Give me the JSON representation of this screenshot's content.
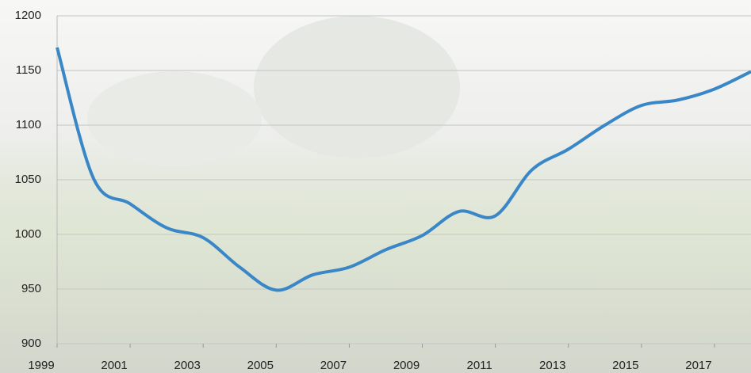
{
  "chart_data": {
    "type": "line",
    "x": [
      1999,
      2000,
      2001,
      2002,
      2003,
      2004,
      2005,
      2006,
      2007,
      2008,
      2009,
      2010,
      2011,
      2012,
      2013,
      2014,
      2015,
      2016,
      2017,
      2018
    ],
    "series": [
      {
        "color": "#3a87c8",
        "values": [
          1171,
          1051,
          1028,
          1006,
          997,
          970,
          949,
          963,
          970,
          986,
          999,
          1021,
          1017,
          1059,
          1078,
          1100,
          1118,
          1123,
          1133,
          1149
        ]
      }
    ],
    "xlim": [
      1999,
      2018
    ],
    "xticks": [
      1999,
      2001,
      2003,
      2005,
      2007,
      2009,
      2011,
      2013,
      2015,
      2017
    ],
    "ylim": [
      900,
      1200
    ],
    "yticks": [
      900,
      950,
      1000,
      1050,
      1100,
      1150,
      1200
    ],
    "grid": true
  }
}
